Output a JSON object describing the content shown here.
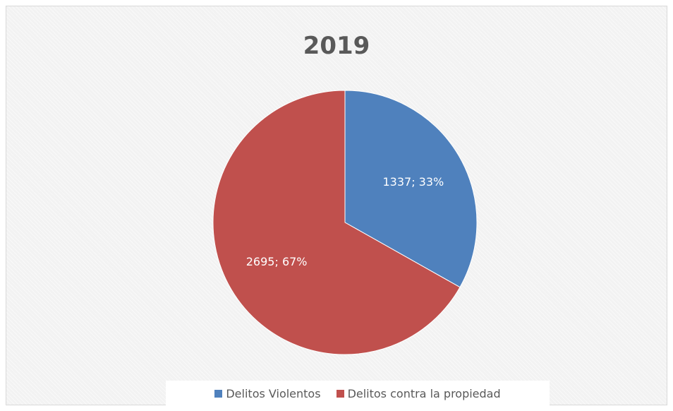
{
  "chart_data": {
    "type": "pie",
    "title": "2019",
    "slices": [
      {
        "name": "Delitos Violentos",
        "value": 1337,
        "percent": 33,
        "label": "1337; 33%",
        "color": "#4f81bd"
      },
      {
        "name": "Delitos contra la propiedad",
        "value": 2695,
        "percent": 67,
        "label": "2695; 67%",
        "color": "#c0504d"
      }
    ],
    "start_angle_deg": 0,
    "direction": "clockwise",
    "legend_position": "bottom"
  }
}
